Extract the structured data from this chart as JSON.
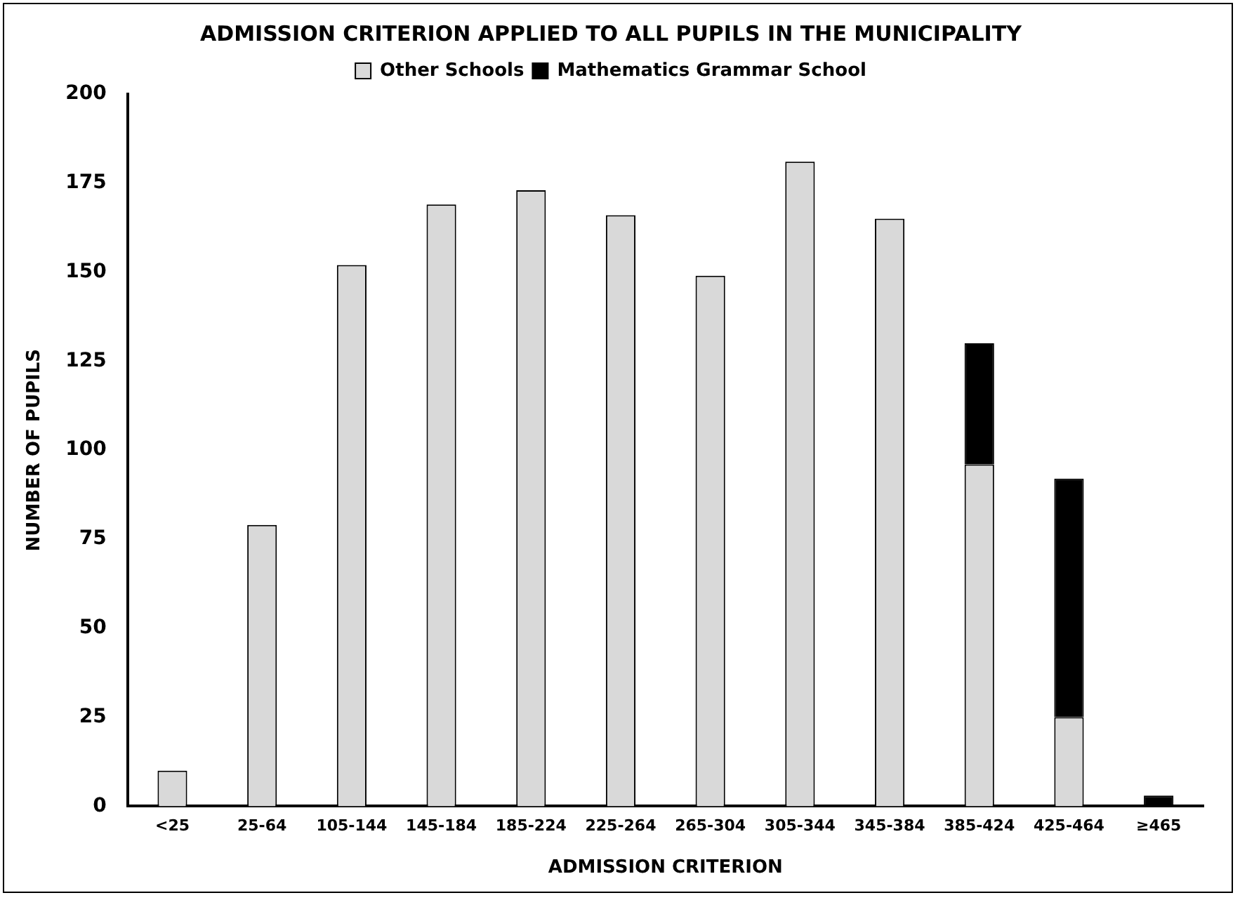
{
  "chart_data": {
    "type": "bar",
    "title": "ADMISSION CRITERION APPLIED TO ALL PUPILS IN THE MUNICIPALITY",
    "xlabel": "ADMISSION CRITERION",
    "ylabel": "NUMBER OF PUPILS",
    "categories": [
      "<25",
      "25-64",
      "105-144",
      "145-184",
      "185-224",
      "225-264",
      "265-304",
      "305-344",
      "345-384",
      "385-424",
      "425-464",
      "≥465"
    ],
    "series": [
      {
        "name": "Other Schools",
        "color": "#d9d9d9",
        "values": [
          10,
          79,
          152,
          169,
          173,
          166,
          149,
          181,
          165,
          96,
          25,
          null
        ]
      },
      {
        "name": "Mathematics Grammar School",
        "color": "#000000",
        "values": [
          null,
          null,
          null,
          null,
          null,
          null,
          null,
          null,
          null,
          34,
          67,
          3
        ]
      }
    ],
    "stacked": true,
    "ylim": [
      0,
      200
    ],
    "yticks": [
      0,
      25,
      50,
      75,
      100,
      125,
      150,
      175,
      200
    ],
    "grid": false,
    "legend": "top"
  }
}
